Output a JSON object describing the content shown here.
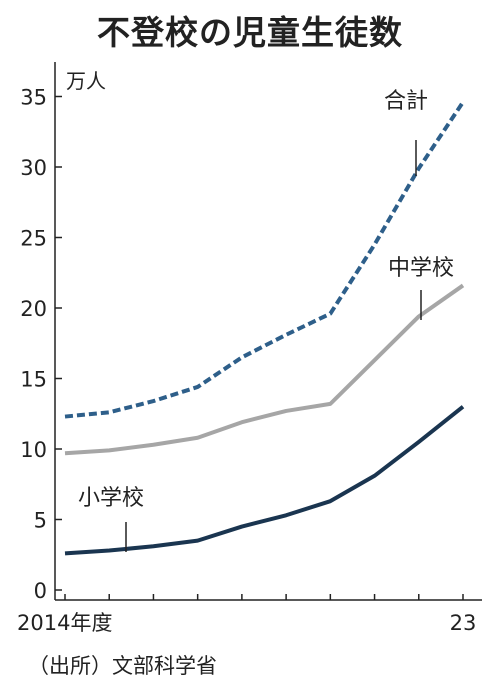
{
  "chart_data": {
    "type": "line",
    "title": "不登校の児童生徒数",
    "ylabel": "万人",
    "ylim": [
      0,
      37
    ],
    "yticks": [
      0,
      5,
      10,
      15,
      20,
      25,
      30,
      35
    ],
    "x": [
      2014,
      2015,
      2016,
      2017,
      2018,
      2019,
      2020,
      2021,
      2022,
      2023
    ],
    "x_tick_labels": [
      {
        "x": 2014,
        "label": "2014年度"
      },
      {
        "x": 2023,
        "label": "23"
      }
    ],
    "series": [
      {
        "name": "合計",
        "values": [
          12.3,
          12.6,
          13.4,
          14.4,
          16.5,
          18.1,
          19.6,
          24.5,
          29.9,
          34.6
        ],
        "color": "#2e5f8a",
        "style": "dashed"
      },
      {
        "name": "中学校",
        "values": [
          9.7,
          9.9,
          10.3,
          10.8,
          11.9,
          12.7,
          13.2,
          16.3,
          19.4,
          21.6
        ],
        "color": "#a6a6a6",
        "style": "solid"
      },
      {
        "name": "小学校",
        "values": [
          2.6,
          2.8,
          3.1,
          3.5,
          4.5,
          5.3,
          6.3,
          8.1,
          10.5,
          13.0
        ],
        "color": "#1a3550",
        "style": "solid"
      }
    ],
    "grid": false,
    "legend": "inline labels"
  },
  "source": "（出所）文部科学省"
}
